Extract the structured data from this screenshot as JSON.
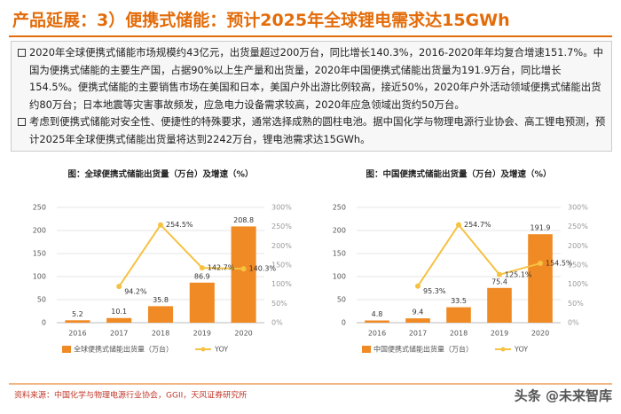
{
  "header": {
    "title": "产品延展：3）便携式储能：预计2025年全球锂电需求达15GWh"
  },
  "bullets": [
    "2020年全球便携式储能市场规模约43亿元，出货量超过200万台，同比增长140.3%，2016-2020年年均复合增速151.7%。中国为便携式储能的主要生产国，占据90%以上生产量和出货量，2020年中国便携式储能出货量为191.9万台，同比增长154.5%。便携式储能的主要销售市场在美国和日本，美国户外出游比例较高，接近50%，2020年户外活动领域便携式储能出货约80万台；日本地震等灾害事故频发，应急电力设备需求较高，2020年应急领域出货约50万台。",
    "考虑到便携式储能对安全性、便捷性的特殊要求，通常选择成熟的圆柱电池。据中国化学与物理电源行业协会、高工锂电预测，预计2025年全球便携式储能出货量将达到2242万台，锂电池需求达15GWh。"
  ],
  "chart_data": [
    {
      "type": "bar",
      "title": "图：全球便携式储能出货量（万台）及增速（%）",
      "categories": [
        "2016",
        "2017",
        "2018",
        "2019",
        "2020"
      ],
      "series": [
        {
          "name": "全球便携式储能出货量（万台）",
          "color": "#f08a24",
          "values": [
            5.2,
            10.1,
            35.8,
            86.9,
            208.8
          ]
        },
        {
          "name": "YOY",
          "type": "line",
          "axis": "y2",
          "color": "#f5c242",
          "values": [
            null,
            94.2,
            254.5,
            142.7,
            140.3
          ],
          "value_labels": [
            null,
            "94.2%",
            "254.5%",
            "142.7%",
            "140.3%"
          ]
        }
      ],
      "ylim": [
        0,
        250
      ],
      "yticks": [
        0,
        50,
        100,
        150,
        200,
        250
      ],
      "y2lim": [
        0,
        300
      ],
      "y2ticks": [
        {
          "value": 0,
          "label": "0%"
        },
        {
          "value": 50,
          "label": "50%"
        },
        {
          "value": 100,
          "label": "100%"
        },
        {
          "value": 150,
          "label": "150%"
        },
        {
          "value": 200,
          "label": "200%"
        },
        {
          "value": 250,
          "label": "250%"
        },
        {
          "value": 300,
          "label": "300%"
        }
      ],
      "grid": true
    },
    {
      "type": "bar",
      "title": "图：中国便携式储能出货量（万台）及增速（%）",
      "categories": [
        "2016",
        "2017",
        "2018",
        "2019",
        "2020"
      ],
      "series": [
        {
          "name": "中国便携式储能出货量（万台）",
          "color": "#f08a24",
          "values": [
            4.8,
            9.4,
            33.5,
            75.4,
            191.9
          ]
        },
        {
          "name": "YOY",
          "type": "line",
          "axis": "y2",
          "color": "#f5c242",
          "values": [
            null,
            95.3,
            254.7,
            125.1,
            154.5
          ],
          "value_labels": [
            null,
            "95.3%",
            "254.7%",
            "125.1%",
            "154.5%"
          ]
        }
      ],
      "ylim": [
        0,
        250
      ],
      "yticks": [
        0,
        50,
        100,
        150,
        200,
        250
      ],
      "y2lim": [
        0,
        300
      ],
      "y2ticks": [
        {
          "value": 0,
          "label": "0%"
        },
        {
          "value": 50,
          "label": "50%"
        },
        {
          "value": 100,
          "label": "100%"
        },
        {
          "value": 150,
          "label": "150%"
        },
        {
          "value": 200,
          "label": "200%"
        },
        {
          "value": 250,
          "label": "250%"
        },
        {
          "value": 300,
          "label": "300%"
        }
      ],
      "grid": true
    }
  ],
  "source": "资料来源：中国化学与物理电源行业协会，GGII，天风证券研究所",
  "watermark": "头条 @未来智库"
}
